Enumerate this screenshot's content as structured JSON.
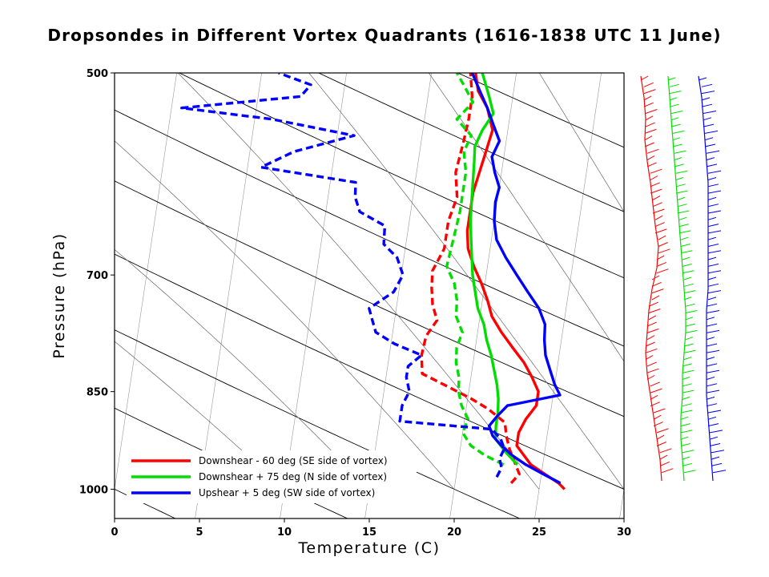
{
  "chart_data": {
    "type": "line",
    "title": "Dropsondes in Different Vortex Quadrants (1616-1838 UTC 11 June)",
    "xlabel": "Temperature (C)",
    "ylabel": "Pressure (hPa)",
    "xlim": [
      0,
      30
    ],
    "ylim": [
      1050,
      500
    ],
    "y_scale": "log",
    "x_ticks": [
      0,
      5,
      10,
      15,
      20,
      25,
      30
    ],
    "y_ticks": [
      500,
      700,
      850,
      1000
    ],
    "grid": false,
    "legend_position": "bottom-left",
    "series": [
      {
        "name": "Downshear - 60 deg (SE side of vortex)",
        "color": "#ff0000",
        "temperature": [
          [
            1000,
            26.5
          ],
          [
            990,
            26.1
          ],
          [
            975,
            25.2
          ],
          [
            960,
            24.3
          ],
          [
            945,
            23.8
          ],
          [
            930,
            23.3
          ],
          [
            910,
            23.3
          ],
          [
            890,
            23.6
          ],
          [
            870,
            24.1
          ],
          [
            850,
            24.1
          ],
          [
            830,
            23.6
          ],
          [
            810,
            23.0
          ],
          [
            790,
            22.2
          ],
          [
            770,
            21.4
          ],
          [
            750,
            20.7
          ],
          [
            730,
            20.3
          ],
          [
            710,
            19.8
          ],
          [
            690,
            19.2
          ],
          [
            670,
            18.7
          ],
          [
            650,
            18.5
          ],
          [
            630,
            18.5
          ],
          [
            610,
            18.5
          ],
          [
            590,
            18.7
          ],
          [
            570,
            18.9
          ],
          [
            550,
            19.1
          ],
          [
            530,
            18.6
          ],
          [
            515,
            17.9
          ],
          [
            500,
            17.6
          ]
        ],
        "dewpoint": [
          [
            990,
            23.3
          ],
          [
            975,
            23.7
          ],
          [
            955,
            23.3
          ],
          [
            935,
            22.9
          ],
          [
            915,
            22.6
          ],
          [
            895,
            22.4
          ],
          [
            875,
            21.3
          ],
          [
            860,
            20.2
          ],
          [
            845,
            18.9
          ],
          [
            825,
            17.1
          ],
          [
            800,
            16.9
          ],
          [
            775,
            17.0
          ],
          [
            755,
            17.5
          ],
          [
            735,
            17.1
          ],
          [
            715,
            16.9
          ],
          [
            695,
            16.8
          ],
          [
            670,
            17.3
          ],
          [
            640,
            17.3
          ],
          [
            615,
            17.6
          ],
          [
            590,
            17.3
          ],
          [
            560,
            17.5
          ],
          [
            540,
            17.6
          ],
          [
            520,
            17.6
          ],
          [
            500,
            17.3
          ]
        ]
      },
      {
        "name": "Downshear + 75 deg (N side of vortex)",
        "color": "#00dd00",
        "temperature": [
          [
            960,
            23.5
          ],
          [
            940,
            22.7
          ],
          [
            920,
            22.0
          ],
          [
            900,
            21.9
          ],
          [
            880,
            21.9
          ],
          [
            860,
            21.8
          ],
          [
            840,
            21.6
          ],
          [
            820,
            21.3
          ],
          [
            800,
            21.0
          ],
          [
            780,
            20.6
          ],
          [
            760,
            20.3
          ],
          [
            740,
            19.8
          ],
          [
            720,
            19.5
          ],
          [
            700,
            19.2
          ],
          [
            680,
            19.0
          ],
          [
            660,
            18.8
          ],
          [
            640,
            18.6
          ],
          [
            620,
            18.5
          ],
          [
            600,
            18.4
          ],
          [
            580,
            18.3
          ],
          [
            565,
            18.2
          ],
          [
            550,
            18.5
          ],
          [
            535,
            19.0
          ],
          [
            520,
            18.6
          ],
          [
            510,
            18.3
          ],
          [
            500,
            18.0
          ]
        ],
        "dewpoint": [
          [
            960,
            22.7
          ],
          [
            945,
            21.5
          ],
          [
            930,
            20.6
          ],
          [
            910,
            20.0
          ],
          [
            890,
            20.2
          ],
          [
            870,
            19.7
          ],
          [
            850,
            19.4
          ],
          [
            830,
            19.3
          ],
          [
            810,
            19.0
          ],
          [
            790,
            18.9
          ],
          [
            770,
            19.1
          ],
          [
            750,
            18.6
          ],
          [
            730,
            18.5
          ],
          [
            710,
            18.2
          ],
          [
            690,
            17.6
          ],
          [
            670,
            17.7
          ],
          [
            650,
            17.8
          ],
          [
            630,
            17.9
          ],
          [
            610,
            17.9
          ],
          [
            590,
            17.9
          ],
          [
            570,
            17.6
          ],
          [
            555,
            17.9
          ],
          [
            540,
            16.9
          ],
          [
            525,
            17.7
          ],
          [
            510,
            17.0
          ],
          [
            500,
            16.5
          ]
        ]
      },
      {
        "name": "Upshear + 5 deg (SW side of vortex)",
        "color": "#0000ff",
        "temperature": [
          [
            990,
            26.2
          ],
          [
            975,
            25.1
          ],
          [
            960,
            24.0
          ],
          [
            945,
            23.1
          ],
          [
            930,
            22.4
          ],
          [
            915,
            21.8
          ],
          [
            900,
            21.5
          ],
          [
            885,
            21.9
          ],
          [
            870,
            22.4
          ],
          [
            855,
            25.4
          ],
          [
            840,
            25.0
          ],
          [
            820,
            24.6
          ],
          [
            800,
            24.2
          ],
          [
            780,
            24.0
          ],
          [
            760,
            23.9
          ],
          [
            740,
            23.4
          ],
          [
            720,
            22.6
          ],
          [
            700,
            21.8
          ],
          [
            680,
            21.0
          ],
          [
            660,
            20.3
          ],
          [
            640,
            20.0
          ],
          [
            620,
            19.9
          ],
          [
            605,
            20.0
          ],
          [
            590,
            19.6
          ],
          [
            575,
            19.3
          ],
          [
            560,
            19.6
          ],
          [
            545,
            19.1
          ],
          [
            530,
            18.6
          ],
          [
            515,
            18.0
          ],
          [
            500,
            17.4
          ]
        ],
        "dewpoint": [
          [
            980,
            22.4
          ],
          [
            965,
            22.6
          ],
          [
            950,
            22.4
          ],
          [
            935,
            22.6
          ],
          [
            920,
            22.3
          ],
          [
            905,
            21.7
          ],
          [
            893,
            16.2
          ],
          [
            870,
            16.2
          ],
          [
            850,
            16.5
          ],
          [
            830,
            16.2
          ],
          [
            815,
            16.2
          ],
          [
            800,
            16.9
          ],
          [
            785,
            15.2
          ],
          [
            770,
            14.0
          ],
          [
            755,
            13.7
          ],
          [
            740,
            13.4
          ],
          [
            720,
            14.7
          ],
          [
            700,
            15.1
          ],
          [
            680,
            14.6
          ],
          [
            665,
            13.7
          ],
          [
            645,
            13.6
          ],
          [
            630,
            12.0
          ],
          [
            615,
            11.6
          ],
          [
            600,
            11.5
          ],
          [
            585,
            5.8
          ],
          [
            570,
            7.6
          ],
          [
            555,
            11.0
          ],
          [
            540,
            6.0
          ],
          [
            530,
            0.6
          ],
          [
            520,
            7.5
          ],
          [
            510,
            8.0
          ],
          [
            500,
            6.0
          ]
        ]
      }
    ]
  }
}
